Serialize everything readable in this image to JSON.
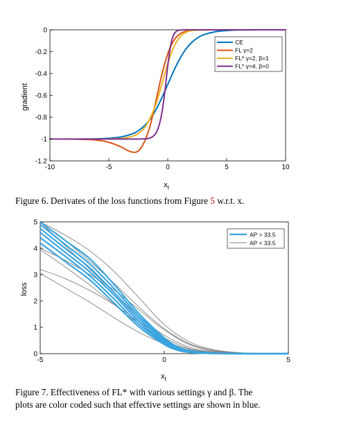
{
  "captions": {
    "fig6": {
      "prefix": "Figure 6. Derivates of the loss functions from Figure ",
      "ref": "5",
      "suffix": " w.r.t. x."
    },
    "fig7": {
      "line1": "Figure 7. Effectiveness of FL* with various settings γ and β. The",
      "line2": "plots are color coded such that effective settings are shown in blue."
    }
  },
  "chart_data": [
    {
      "type": "line",
      "xlabel": "xt",
      "ylabel": "gradient",
      "xlim": [
        -10,
        10
      ],
      "ylim": [
        -1.2,
        0
      ],
      "xticks": [
        "-10",
        "-5",
        "0",
        "5",
        "10"
      ],
      "yticks": [
        "0",
        "-0.2",
        "-0.4",
        "-0.6",
        "-0.8",
        "-1",
        "-1.2"
      ],
      "grid": false,
      "legend_position": "top-right",
      "series": [
        {
          "name": "CE",
          "color": "#0072BD",
          "x": [
            -10,
            -8,
            -6,
            -5,
            -4,
            -3,
            -2.5,
            -2,
            -1.5,
            -1,
            -0.5,
            0,
            0.5,
            1,
            1.5,
            2,
            2.5,
            3,
            4,
            5,
            6,
            8,
            10
          ],
          "y": [
            -1,
            -1,
            -0.998,
            -0.993,
            -0.982,
            -0.953,
            -0.924,
            -0.881,
            -0.818,
            -0.731,
            -0.622,
            -0.5,
            -0.378,
            -0.269,
            -0.182,
            -0.119,
            -0.076,
            -0.047,
            -0.018,
            -0.007,
            -0.002,
            0,
            0
          ]
        },
        {
          "name": "FL γ=2",
          "color": "#D95319",
          "x": [
            -10,
            -8,
            -6,
            -5,
            -4,
            -3.5,
            -3,
            -2.5,
            -2,
            -1.5,
            -1,
            -0.5,
            0,
            0.5,
            1,
            1.5,
            2,
            3,
            4,
            6,
            10
          ],
          "y": [
            -1,
            -1.001,
            -1.01,
            -1.03,
            -1.07,
            -1.1,
            -1.12,
            -1.11,
            -1.03,
            -0.88,
            -0.65,
            -0.41,
            -0.22,
            -0.1,
            -0.04,
            -0.015,
            -0.005,
            -0.001,
            0,
            0,
            0
          ]
        },
        {
          "name": "FL* γ=2, β=1",
          "color": "#EDB120",
          "x": [
            -10,
            -6,
            -4,
            -3,
            -2.5,
            -2,
            -1.5,
            -1,
            -0.5,
            0,
            0.5,
            1,
            1.5,
            2,
            3,
            4,
            6,
            10
          ],
          "y": [
            -1,
            -1,
            -0.995,
            -0.975,
            -0.95,
            -0.9,
            -0.81,
            -0.68,
            -0.5,
            -0.31,
            -0.16,
            -0.07,
            -0.025,
            -0.008,
            -0.001,
            0,
            0,
            0
          ]
        },
        {
          "name": "FL* γ=4, β=0",
          "color": "#7E2F8E",
          "x": [
            -10,
            -4,
            -2,
            -1.5,
            -1.25,
            -1,
            -0.75,
            -0.5,
            -0.25,
            0,
            0.25,
            0.5,
            0.75,
            1,
            1.5,
            2,
            4,
            10
          ],
          "y": [
            -1,
            -1,
            -0.998,
            -0.99,
            -0.975,
            -0.945,
            -0.88,
            -0.76,
            -0.57,
            -0.33,
            -0.14,
            -0.045,
            -0.012,
            -0.003,
            0,
            0,
            0,
            0
          ]
        }
      ]
    },
    {
      "type": "line",
      "xlabel": "xt",
      "ylabel": "loss",
      "xlim": [
        -5,
        5
      ],
      "ylim": [
        0,
        5
      ],
      "xticks": [
        "-5",
        "0",
        "5"
      ],
      "yticks": [
        "0",
        "1",
        "2",
        "3",
        "4",
        "5"
      ],
      "grid": false,
      "legend_position": "top-right",
      "legend": [
        {
          "name": "AP > 33.5",
          "color": "#3BA5E0"
        },
        {
          "name": "AP < 33.5",
          "color": "#808080"
        }
      ],
      "series_effective": [
        {
          "x": [
            -5,
            -4,
            -3,
            -2,
            -1,
            0,
            0.5,
            1,
            2,
            3,
            5
          ],
          "y": [
            5.0,
            4.3,
            3.6,
            2.6,
            1.5,
            0.6,
            0.28,
            0.12,
            0.02,
            0,
            0
          ]
        },
        {
          "x": [
            -5,
            -4,
            -3,
            -2,
            -1,
            0,
            0.5,
            1,
            2,
            3,
            5
          ],
          "y": [
            4.9,
            4.15,
            3.4,
            2.45,
            1.4,
            0.55,
            0.25,
            0.1,
            0.02,
            0,
            0
          ]
        },
        {
          "x": [
            -5,
            -4,
            -3,
            -2,
            -1,
            0,
            0.5,
            1,
            2,
            3,
            5
          ],
          "y": [
            4.75,
            4.0,
            3.25,
            2.3,
            1.3,
            0.5,
            0.22,
            0.09,
            0.015,
            0,
            0
          ]
        },
        {
          "x": [
            -5,
            -4,
            -3,
            -2,
            -1,
            0,
            0.5,
            1,
            2,
            3,
            5
          ],
          "y": [
            4.6,
            3.85,
            3.1,
            2.2,
            1.2,
            0.45,
            0.2,
            0.08,
            0.01,
            0,
            0
          ]
        },
        {
          "x": [
            -5,
            -4,
            -3,
            -2,
            -1,
            0,
            0.5,
            1,
            2,
            3,
            5
          ],
          "y": [
            4.4,
            3.7,
            2.95,
            2.05,
            1.1,
            0.4,
            0.17,
            0.06,
            0.01,
            0,
            0
          ]
        },
        {
          "x": [
            -5,
            -4,
            -3,
            -2,
            -1,
            0,
            0.5,
            1,
            2,
            3,
            5
          ],
          "y": [
            4.2,
            3.5,
            2.8,
            1.9,
            1.0,
            0.35,
            0.14,
            0.05,
            0.005,
            0,
            0
          ]
        }
      ],
      "series_other": [
        {
          "x": [
            -5,
            -4,
            -3,
            -2,
            -1,
            0,
            1,
            2,
            3,
            4,
            5
          ],
          "y": [
            5.0,
            4.5,
            3.9,
            3.1,
            2.1,
            1.1,
            0.45,
            0.15,
            0.04,
            0.01,
            0
          ]
        },
        {
          "x": [
            -5,
            -4,
            -3,
            -2,
            -1,
            0,
            1,
            2,
            3,
            4,
            5
          ],
          "y": [
            5.0,
            4.3,
            3.5,
            2.65,
            1.75,
            0.95,
            0.38,
            0.12,
            0.03,
            0.005,
            0
          ]
        },
        {
          "x": [
            -5,
            -4,
            -3,
            -2,
            -1,
            0,
            1,
            2,
            3,
            4,
            5
          ],
          "y": [
            5.0,
            4.1,
            3.2,
            2.3,
            1.4,
            0.7,
            0.25,
            0.07,
            0.015,
            0,
            0
          ]
        },
        {
          "x": [
            -5,
            -4,
            -3,
            -2,
            -1,
            0,
            1,
            2,
            3,
            4,
            5
          ],
          "y": [
            4.0,
            3.55,
            3.0,
            2.4,
            1.65,
            0.9,
            0.35,
            0.1,
            0.02,
            0,
            0
          ]
        },
        {
          "x": [
            -5,
            -4,
            -3,
            -2,
            -1,
            0,
            1,
            2,
            3,
            4,
            5
          ],
          "y": [
            3.95,
            3.3,
            2.6,
            1.85,
            1.1,
            0.5,
            0.17,
            0.04,
            0.01,
            0,
            0
          ]
        },
        {
          "x": [
            -5,
            -4,
            -3,
            -2,
            -1,
            0,
            1,
            2,
            3,
            4,
            5
          ],
          "y": [
            3.2,
            2.85,
            2.4,
            1.85,
            1.2,
            0.6,
            0.2,
            0.05,
            0.01,
            0,
            0
          ]
        },
        {
          "x": [
            -5,
            -4,
            -3,
            -2,
            -1,
            0,
            1,
            2,
            3,
            4,
            5
          ],
          "y": [
            3.05,
            2.5,
            1.95,
            1.35,
            0.8,
            0.38,
            0.12,
            0.03,
            0,
            0,
            0
          ]
        }
      ]
    }
  ]
}
